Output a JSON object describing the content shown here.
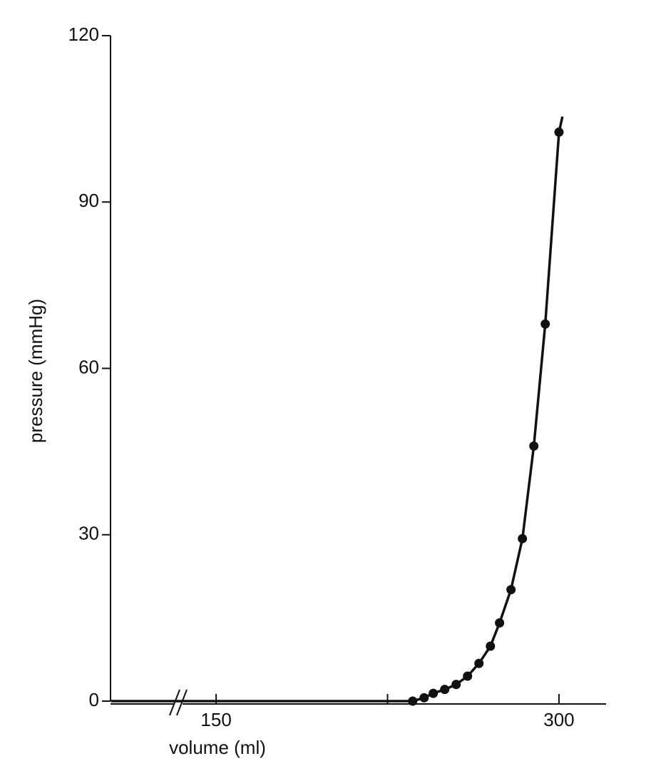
{
  "chart_data": {
    "type": "line",
    "x_label": "volume (ml)",
    "y_label": "pressure (mmHg)",
    "xlim": [
      103.8,
      320.6
    ],
    "xticks": [
      150,
      300
    ],
    "minor_xticks": [
      225
    ],
    "ylim": [
      0,
      120
    ],
    "yticks": [
      0,
      30,
      60,
      90,
      120
    ],
    "axis_break": true,
    "color": "#111111",
    "series": [
      {
        "type": "line",
        "x": [
          104,
          200,
          230,
          236,
          241,
          245,
          250,
          255,
          260,
          265,
          270,
          274,
          279,
          284,
          289,
          294,
          300,
          301.5
        ],
        "values": [
          0,
          0,
          0,
          0.0,
          0.6,
          1.4,
          2.1,
          3.0,
          4.5,
          6.8,
          9.9,
          14.1,
          20.1,
          29.3,
          46.0,
          68.0,
          102.6,
          105.4
        ]
      },
      {
        "type": "scatter",
        "x": [
          236,
          241,
          245,
          250,
          255,
          260,
          265,
          270,
          274,
          279,
          284,
          289,
          294,
          300
        ],
        "values": [
          0.0,
          0.6,
          1.4,
          2.1,
          3.0,
          4.5,
          6.8,
          9.9,
          14.1,
          20.1,
          29.3,
          46.0,
          68.0,
          102.6
        ]
      }
    ]
  }
}
